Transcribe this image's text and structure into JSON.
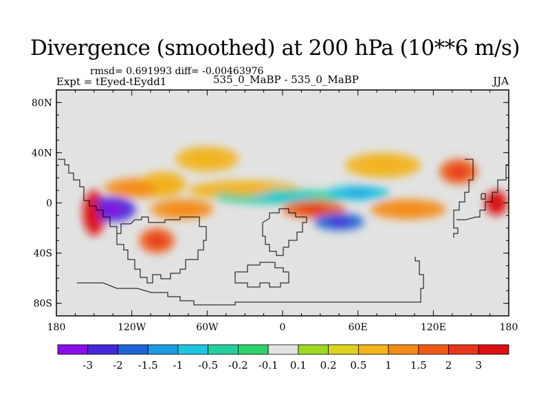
{
  "chart_data": {
    "type": "heatmap",
    "title": "Divergence (smoothed) at 200 hPa (10**6 m/s)",
    "stats": "rmsd= 0.691993 diff= -0.00463976",
    "experiment": "Expt = tEyed-tEydd1",
    "subtitle": "535_0_MaBP - 535_0_MaBP",
    "season": "JJA",
    "xlim": [
      -180,
      180
    ],
    "ylim": [
      -90,
      90
    ],
    "x_ticks": [
      {
        "value": -180,
        "label": "180"
      },
      {
        "value": -120,
        "label": "120W"
      },
      {
        "value": -60,
        "label": "60W"
      },
      {
        "value": 0,
        "label": "0"
      },
      {
        "value": 60,
        "label": "60E"
      },
      {
        "value": 120,
        "label": "120E"
      },
      {
        "value": 180,
        "label": "180"
      }
    ],
    "y_ticks": [
      {
        "value": 80,
        "label": "80N"
      },
      {
        "value": 40,
        "label": "40N"
      },
      {
        "value": 0,
        "label": "0"
      },
      {
        "value": -40,
        "label": "40S"
      },
      {
        "value": -80,
        "label": "80S"
      }
    ],
    "colorbar": {
      "labels": [
        "-3",
        "-2",
        "-1.5",
        "-1",
        "-0.5",
        "-0.2",
        "-0.1",
        "0.1",
        "0.2",
        "0.5",
        "1",
        "1.5",
        "2",
        "3"
      ],
      "colors": [
        "#8a0ee8",
        "#4428d8",
        "#1f64d6",
        "#1c9ae2",
        "#1ec5e0",
        "#27cfa0",
        "#2ed26a",
        "#e2e2e2",
        "#9ed81f",
        "#dcd21f",
        "#f2b31c",
        "#f48b18",
        "#ee5a16",
        "#e6361a",
        "#dc0f12"
      ]
    },
    "features": [
      {
        "lon": -150,
        "lat": -8,
        "value": 3,
        "rx": 9,
        "ry": 18
      },
      {
        "lon": -135,
        "lat": -5,
        "value": -3,
        "rx": 18,
        "ry": 10
      },
      {
        "lon": -112,
        "lat": 12,
        "value": 1,
        "rx": 30,
        "ry": 8
      },
      {
        "lon": -95,
        "lat": 15,
        "value": 0.5,
        "rx": 18,
        "ry": 10
      },
      {
        "lon": -100,
        "lat": -30,
        "value": 1.5,
        "rx": 14,
        "ry": 10
      },
      {
        "lon": -80,
        "lat": -5,
        "value": 1,
        "rx": 25,
        "ry": 8
      },
      {
        "lon": -30,
        "lat": 10,
        "value": 0.5,
        "rx": 45,
        "ry": 8
      },
      {
        "lon": 0,
        "lat": 5,
        "value": -0.5,
        "rx": 55,
        "ry": 6
      },
      {
        "lon": 25,
        "lat": -5,
        "value": 1.5,
        "rx": 25,
        "ry": 7
      },
      {
        "lon": 45,
        "lat": -15,
        "value": -2,
        "rx": 20,
        "ry": 7
      },
      {
        "lon": 60,
        "lat": 8,
        "value": -1,
        "rx": 25,
        "ry": 6
      },
      {
        "lon": 100,
        "lat": -5,
        "value": 1,
        "rx": 30,
        "ry": 8
      },
      {
        "lon": 140,
        "lat": 25,
        "value": 1.5,
        "rx": 15,
        "ry": 10
      },
      {
        "lon": 170,
        "lat": 0,
        "value": 3,
        "rx": 9,
        "ry": 10
      },
      {
        "lon": -60,
        "lat": 35,
        "value": 0.5,
        "rx": 25,
        "ry": 10
      },
      {
        "lon": 80,
        "lat": 30,
        "value": 0.5,
        "rx": 30,
        "ry": 10
      }
    ]
  }
}
